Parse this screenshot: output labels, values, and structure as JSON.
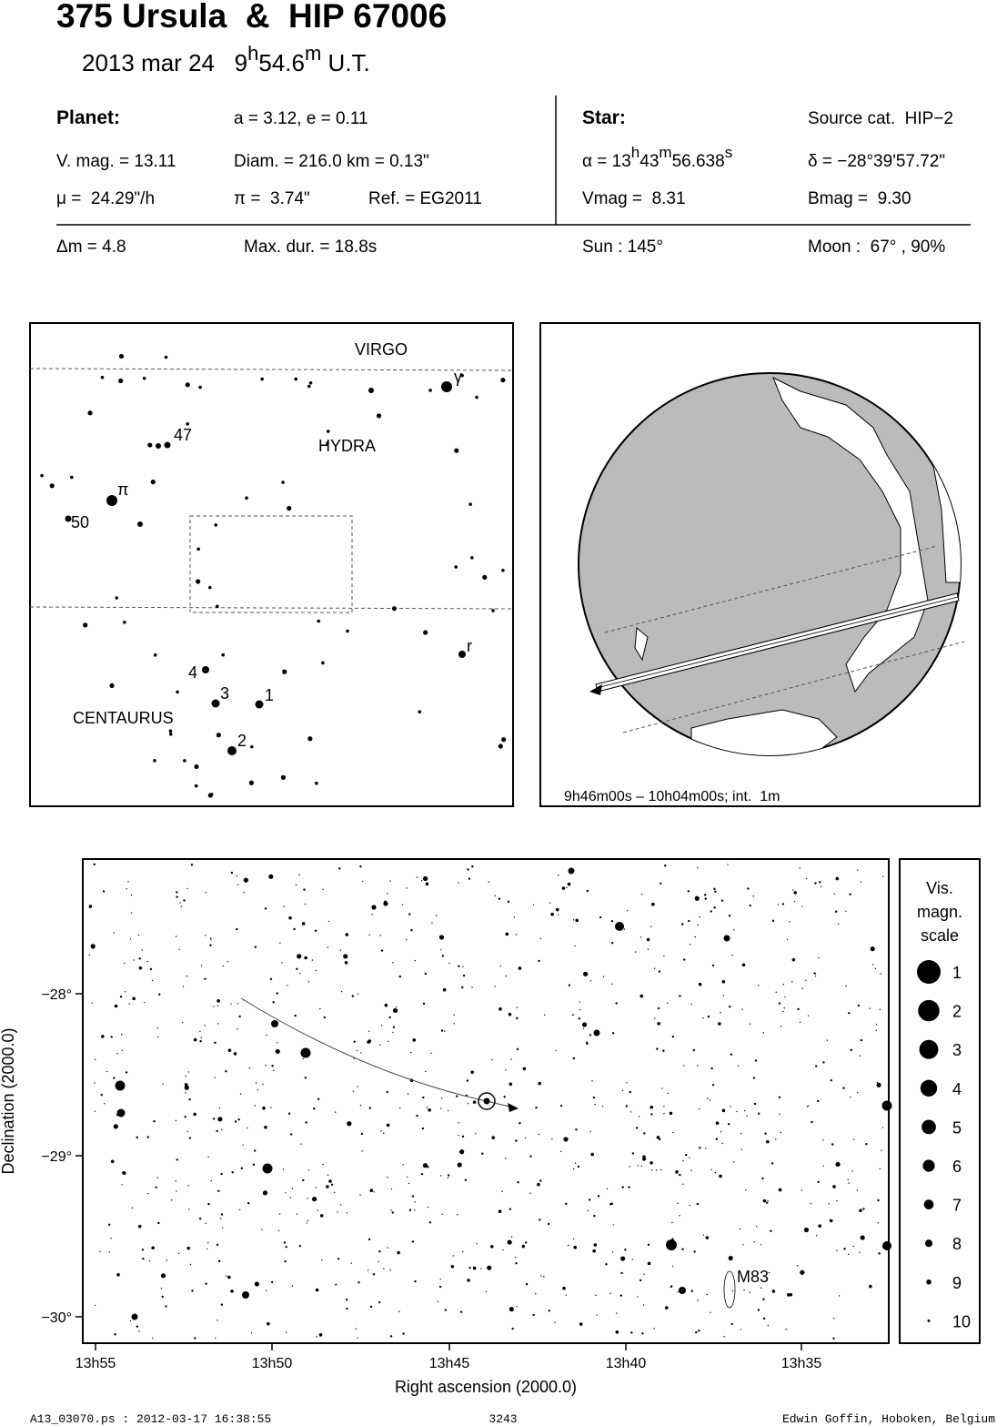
{
  "header": {
    "title": "375 Ursula  &  HIP 67006",
    "date": "2013 mar 24   ",
    "time_hours": "9",
    "time_h": "h",
    "time_minutes": "54.6",
    "time_m": "m",
    "time_suffix": " U.T."
  },
  "info": {
    "planet_heading": "Planet:",
    "orbit": "a = 3.12, e = 0.11",
    "star_heading": "Star:",
    "source": "Source cat.  HIP−2",
    "vmag_planet": "V. mag. = 13.11",
    "diameter": "Diam. = 216.0 km = 0.13\"",
    "alpha_prefix": "α = 13",
    "alpha_h": "h",
    "alpha_min": "43",
    "alpha_m": "m",
    "alpha_sec": "56.638",
    "alpha_s": "s",
    "delta": "δ = −28°39'57.72\"",
    "motion": "μ =  24.29\"/h",
    "parallax": "π =  3.74\"",
    "reference": "Ref. = EG2011",
    "vmag_star": "Vmag =  8.31",
    "bmag_star": "Bmag =  9.30",
    "delta_mag": "Δm = 4.8",
    "max_duration": "Max. dur. = 18.8s",
    "sun": "Sun : 145°",
    "moon": "Moon :  67° , 90%"
  },
  "finder": {
    "constellations": [
      "VIRGO",
      "HYDRA",
      "CENTAURUS"
    ],
    "star_labels": [
      "γ",
      "47",
      "π",
      "50",
      "r",
      "4",
      "3",
      "1",
      "2"
    ]
  },
  "globe": {
    "caption": "9h46m00s – 10h04m00s; int.  1m"
  },
  "star_chart": {
    "x_label": "Right ascension (2000.0)",
    "y_label": "Declination (2000.0)",
    "xticks": [
      "13h55",
      "13h50",
      "13h45",
      "13h40",
      "13h35"
    ],
    "yticks": [
      "−28°",
      "−29°",
      "−30°"
    ],
    "object_label": "M83"
  },
  "magnitude_scale": {
    "title": [
      "Vis.",
      "magn.",
      "scale"
    ],
    "values": [
      1,
      2,
      3,
      4,
      5,
      6,
      7,
      8,
      9,
      10
    ]
  },
  "footer": {
    "file": "A13_03070.ps : 2012-03-17 16:38:55",
    "number": "3243",
    "author": "Edwin Goffin, Hoboken, Belgium"
  }
}
